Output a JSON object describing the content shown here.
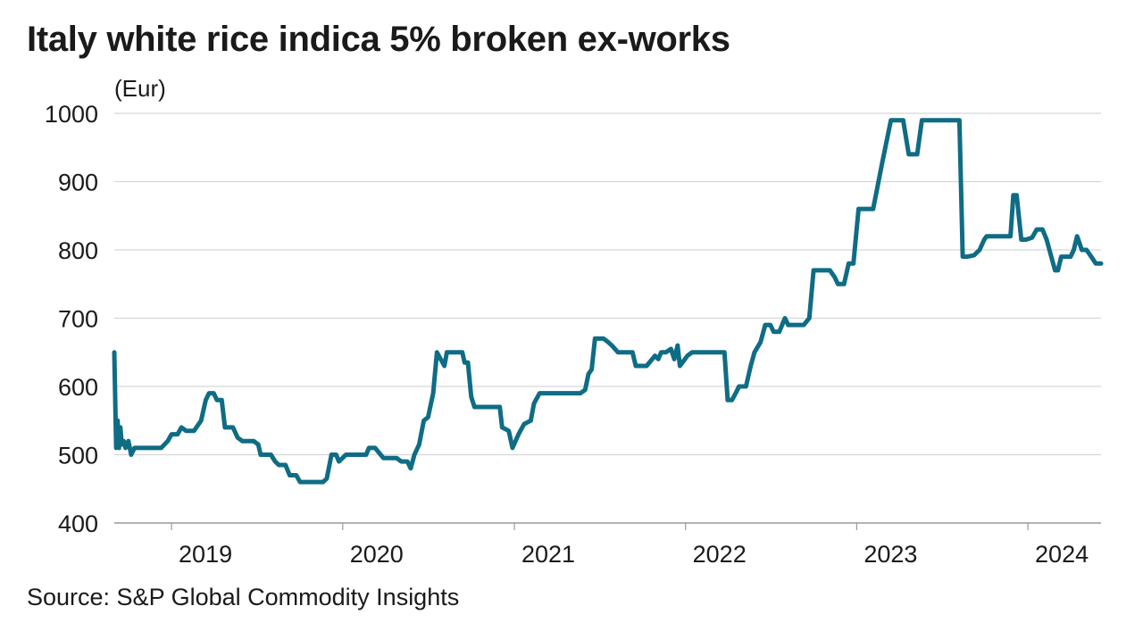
{
  "title": "Italy white rice indica 5% broken ex-works",
  "source": "Source: S&P Global Commodity Insights",
  "chart_data": {
    "type": "line",
    "title": "Italy white rice indica 5% broken ex-works",
    "ylabel": "(Eur)",
    "ylim": [
      400,
      1000
    ],
    "yticks": [
      400,
      500,
      600,
      700,
      800,
      900,
      1000
    ],
    "xlim": [
      "2018-09-01",
      "2024-06-05"
    ],
    "xticks": [
      {
        "label": "2019",
        "date": "2019-01-01"
      },
      {
        "label": "2020",
        "date": "2020-01-01"
      },
      {
        "label": "2021",
        "date": "2021-01-01"
      },
      {
        "label": "2022",
        "date": "2022-01-01"
      },
      {
        "label": "2023",
        "date": "2023-01-01"
      },
      {
        "label": "2024",
        "date": "2024-01-01"
      }
    ],
    "grid": true,
    "legend": "none",
    "color": "#0f6c85",
    "series": [
      {
        "points": [
          [
            "2018-09-01",
            650
          ],
          [
            "2018-09-05",
            510
          ],
          [
            "2018-09-08",
            550
          ],
          [
            "2018-09-11",
            510
          ],
          [
            "2018-09-14",
            540
          ],
          [
            "2018-09-17",
            515
          ],
          [
            "2018-09-21",
            520
          ],
          [
            "2018-09-25",
            510
          ],
          [
            "2018-10-01",
            520
          ],
          [
            "2018-10-07",
            500
          ],
          [
            "2018-10-14",
            510
          ],
          [
            "2018-11-15",
            510
          ],
          [
            "2018-12-10",
            510
          ],
          [
            "2018-12-24",
            520
          ],
          [
            "2019-01-01",
            530
          ],
          [
            "2019-01-14",
            530
          ],
          [
            "2019-01-22",
            540
          ],
          [
            "2019-02-01",
            535
          ],
          [
            "2019-02-18",
            535
          ],
          [
            "2019-03-05",
            550
          ],
          [
            "2019-03-15",
            580
          ],
          [
            "2019-03-22",
            590
          ],
          [
            "2019-04-01",
            590
          ],
          [
            "2019-04-08",
            580
          ],
          [
            "2019-04-18",
            580
          ],
          [
            "2019-04-25",
            540
          ],
          [
            "2019-05-12",
            540
          ],
          [
            "2019-05-22",
            525
          ],
          [
            "2019-06-01",
            520
          ],
          [
            "2019-06-25",
            520
          ],
          [
            "2019-07-05",
            515
          ],
          [
            "2019-07-10",
            500
          ],
          [
            "2019-08-01",
            500
          ],
          [
            "2019-08-10",
            490
          ],
          [
            "2019-08-18",
            485
          ],
          [
            "2019-09-01",
            485
          ],
          [
            "2019-09-10",
            470
          ],
          [
            "2019-09-24",
            470
          ],
          [
            "2019-10-02",
            460
          ],
          [
            "2019-10-20",
            460
          ],
          [
            "2019-11-20",
            460
          ],
          [
            "2019-11-28",
            465
          ],
          [
            "2019-12-08",
            500
          ],
          [
            "2019-12-18",
            500
          ],
          [
            "2019-12-24",
            490
          ],
          [
            "2020-01-08",
            500
          ],
          [
            "2020-01-25",
            500
          ],
          [
            "2020-02-05",
            500
          ],
          [
            "2020-02-20",
            500
          ],
          [
            "2020-02-26",
            510
          ],
          [
            "2020-03-10",
            510
          ],
          [
            "2020-03-22",
            500
          ],
          [
            "2020-03-28",
            495
          ],
          [
            "2020-04-15",
            495
          ],
          [
            "2020-04-25",
            495
          ],
          [
            "2020-05-05",
            490
          ],
          [
            "2020-05-18",
            490
          ],
          [
            "2020-05-25",
            480
          ],
          [
            "2020-06-02",
            500
          ],
          [
            "2020-06-12",
            515
          ],
          [
            "2020-06-22",
            550
          ],
          [
            "2020-07-01",
            555
          ],
          [
            "2020-07-12",
            590
          ],
          [
            "2020-07-20",
            650
          ],
          [
            "2020-07-28",
            640
          ],
          [
            "2020-08-05",
            630
          ],
          [
            "2020-08-10",
            650
          ],
          [
            "2020-08-22",
            650
          ],
          [
            "2020-09-12",
            650
          ],
          [
            "2020-09-17",
            635
          ],
          [
            "2020-09-24",
            635
          ],
          [
            "2020-10-01",
            585
          ],
          [
            "2020-10-08",
            570
          ],
          [
            "2020-10-20",
            570
          ],
          [
            "2020-11-15",
            570
          ],
          [
            "2020-12-01",
            570
          ],
          [
            "2020-12-06",
            540
          ],
          [
            "2020-12-20",
            535
          ],
          [
            "2020-12-28",
            510
          ],
          [
            "2021-01-10",
            530
          ],
          [
            "2021-01-22",
            545
          ],
          [
            "2021-02-05",
            550
          ],
          [
            "2021-02-12",
            575
          ],
          [
            "2021-02-24",
            590
          ],
          [
            "2021-03-10",
            590
          ],
          [
            "2021-04-15",
            590
          ],
          [
            "2021-05-10",
            590
          ],
          [
            "2021-05-22",
            590
          ],
          [
            "2021-06-01",
            595
          ],
          [
            "2021-06-08",
            618
          ],
          [
            "2021-06-15",
            625
          ],
          [
            "2021-06-22",
            670
          ],
          [
            "2021-07-10",
            670
          ],
          [
            "2021-07-20",
            665
          ],
          [
            "2021-07-28",
            660
          ],
          [
            "2021-08-10",
            650
          ],
          [
            "2021-09-10",
            650
          ],
          [
            "2021-09-17",
            630
          ],
          [
            "2021-10-10",
            630
          ],
          [
            "2021-10-22",
            640
          ],
          [
            "2021-10-28",
            645
          ],
          [
            "2021-11-04",
            640
          ],
          [
            "2021-11-10",
            650
          ],
          [
            "2021-11-20",
            650
          ],
          [
            "2021-12-01",
            655
          ],
          [
            "2021-12-08",
            640
          ],
          [
            "2021-12-15",
            660
          ],
          [
            "2021-12-20",
            630
          ],
          [
            "2022-01-05",
            645
          ],
          [
            "2022-01-15",
            650
          ],
          [
            "2022-03-10",
            650
          ],
          [
            "2022-03-25",
            650
          ],
          [
            "2022-04-01",
            580
          ],
          [
            "2022-04-10",
            580
          ],
          [
            "2022-04-18",
            590
          ],
          [
            "2022-04-25",
            600
          ],
          [
            "2022-05-10",
            600
          ],
          [
            "2022-05-20",
            630
          ],
          [
            "2022-05-28",
            650
          ],
          [
            "2022-06-10",
            665
          ],
          [
            "2022-06-20",
            690
          ],
          [
            "2022-07-01",
            690
          ],
          [
            "2022-07-08",
            680
          ],
          [
            "2022-07-20",
            680
          ],
          [
            "2022-08-01",
            700
          ],
          [
            "2022-08-08",
            690
          ],
          [
            "2022-08-25",
            690
          ],
          [
            "2022-09-10",
            690
          ],
          [
            "2022-09-22",
            700
          ],
          [
            "2022-10-01",
            770
          ],
          [
            "2022-10-20",
            770
          ],
          [
            "2022-11-05",
            770
          ],
          [
            "2022-11-15",
            760
          ],
          [
            "2022-11-22",
            750
          ],
          [
            "2022-12-05",
            750
          ],
          [
            "2022-12-15",
            780
          ],
          [
            "2022-12-25",
            780
          ],
          [
            "2023-01-05",
            860
          ],
          [
            "2023-01-20",
            860
          ],
          [
            "2023-02-05",
            860
          ],
          [
            "2023-02-25",
            930
          ],
          [
            "2023-03-15",
            990
          ],
          [
            "2023-04-01",
            990
          ],
          [
            "2023-04-10",
            990
          ],
          [
            "2023-04-22",
            940
          ],
          [
            "2023-05-10",
            940
          ],
          [
            "2023-05-20",
            990
          ],
          [
            "2023-06-05",
            990
          ],
          [
            "2023-06-20",
            990
          ],
          [
            "2023-07-20",
            990
          ],
          [
            "2023-08-08",
            990
          ],
          [
            "2023-08-15",
            790
          ],
          [
            "2023-08-25",
            790
          ],
          [
            "2023-09-08",
            792
          ],
          [
            "2023-09-20",
            800
          ],
          [
            "2023-09-30",
            815
          ],
          [
            "2023-10-05",
            820
          ],
          [
            "2023-10-25",
            820
          ],
          [
            "2023-11-15",
            820
          ],
          [
            "2023-11-25",
            820
          ],
          [
            "2023-12-01",
            880
          ],
          [
            "2023-12-08",
            880
          ],
          [
            "2023-12-18",
            815
          ],
          [
            "2023-12-28",
            815
          ],
          [
            "2024-01-10",
            818
          ],
          [
            "2024-01-20",
            830
          ],
          [
            "2024-02-01",
            830
          ],
          [
            "2024-02-10",
            815
          ],
          [
            "2024-02-20",
            790
          ],
          [
            "2024-02-28",
            770
          ],
          [
            "2024-03-05",
            770
          ],
          [
            "2024-03-12",
            790
          ],
          [
            "2024-03-20",
            790
          ],
          [
            "2024-04-01",
            790
          ],
          [
            "2024-04-08",
            800
          ],
          [
            "2024-04-15",
            820
          ],
          [
            "2024-04-25",
            800
          ],
          [
            "2024-05-05",
            800
          ],
          [
            "2024-05-15",
            790
          ],
          [
            "2024-05-25",
            780
          ],
          [
            "2024-06-05",
            780
          ]
        ]
      }
    ]
  }
}
